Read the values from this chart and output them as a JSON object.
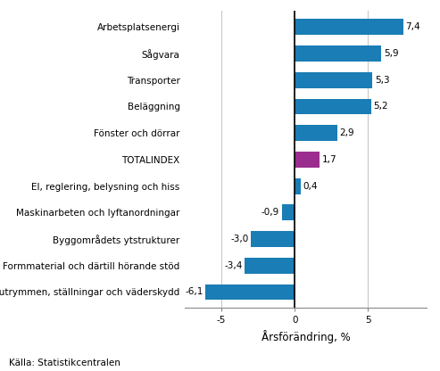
{
  "categories": [
    "Arbetsplatsutrymmen, ställningar och väderskydd",
    "Formmaterial och därtill hörande stöd",
    "Byggområdets ytstrukturer",
    "Maskinarbeten och lyftanordningar",
    "El, reglering, belysning och hiss",
    "TOTALINDEX",
    "Fönster och dörrar",
    "Beläggning",
    "Transporter",
    "Sågvara",
    "Arbetsplatsenergi"
  ],
  "values": [
    -6.1,
    -3.4,
    -3.0,
    -0.9,
    0.4,
    1.7,
    2.9,
    5.2,
    5.3,
    5.9,
    7.4
  ],
  "bar_colors": [
    "#1a7db5",
    "#1a7db5",
    "#1a7db5",
    "#1a7db5",
    "#1a7db5",
    "#9b2d8e",
    "#1a7db5",
    "#1a7db5",
    "#1a7db5",
    "#1a7db5",
    "#1a7db5"
  ],
  "xlabel": "Årsförändring, %",
  "xlim": [
    -7.5,
    9.0
  ],
  "xticks": [
    -5,
    0,
    5
  ],
  "source": "Källa: Statistikcentralen",
  "label_fontsize": 7.5,
  "tick_fontsize": 7.5,
  "xlabel_fontsize": 8.5,
  "source_fontsize": 7.5,
  "background_color": "#ffffff",
  "grid_color": "#c8c8c8",
  "bar_height": 0.6
}
